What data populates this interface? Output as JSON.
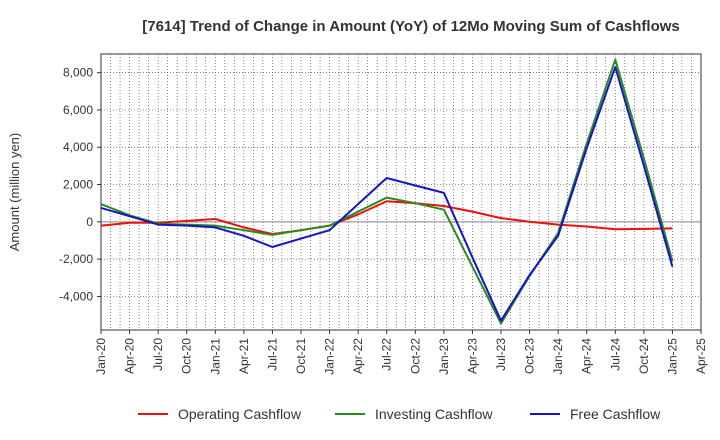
{
  "chart_data": {
    "type": "line",
    "title": "[7614]  Trend of Change in Amount (YoY) of 12Mo Moving Sum of Cashflows",
    "xlabel": "",
    "ylabel": "Amount (million yen)",
    "ylim": [
      -5800,
      9000
    ],
    "yticks": [
      -4000,
      -2000,
      0,
      2000,
      4000,
      6000,
      8000
    ],
    "ytick_labels": [
      "-4,000",
      "-2,000",
      "0",
      "2,000",
      "4,000",
      "6,000",
      "8,000"
    ],
    "categories": [
      "Jan-20",
      "Apr-20",
      "Jul-20",
      "Oct-20",
      "Jan-21",
      "Apr-21",
      "Jul-21",
      "Oct-21",
      "Jan-22",
      "Apr-22",
      "Jul-22",
      "Oct-22",
      "Jan-23",
      "Apr-23",
      "Jul-23",
      "Oct-23",
      "Jan-24",
      "Apr-24",
      "Jul-24",
      "Oct-24",
      "Jan-25",
      "Apr-25"
    ],
    "grid": true,
    "legend_position": "bottom",
    "series": [
      {
        "name": "Operating Cashflow",
        "color": "#e8140c",
        "values": [
          -200,
          -50,
          -50,
          50,
          150,
          -300,
          -650,
          -450,
          -200,
          400,
          1100,
          1000,
          850,
          550,
          200,
          0,
          -150,
          -250,
          -400,
          -380,
          -350,
          null
        ]
      },
      {
        "name": "Investing Cashflow",
        "color": "#2a8a1e",
        "values": [
          950,
          350,
          -100,
          -150,
          -200,
          -450,
          -700,
          -450,
          -200,
          550,
          1300,
          1000,
          650,
          -2400,
          -5450,
          -2900,
          -600,
          4200,
          8700,
          3400,
          -2100,
          null
        ]
      },
      {
        "name": "Free Cashflow",
        "color": "#1414c8",
        "values": [
          750,
          300,
          -150,
          -200,
          -300,
          -750,
          -1350,
          -900,
          -450,
          950,
          2350,
          1950,
          1550,
          -1900,
          -5300,
          -2850,
          -750,
          3950,
          8300,
          3000,
          -2400,
          null
        ]
      }
    ]
  }
}
